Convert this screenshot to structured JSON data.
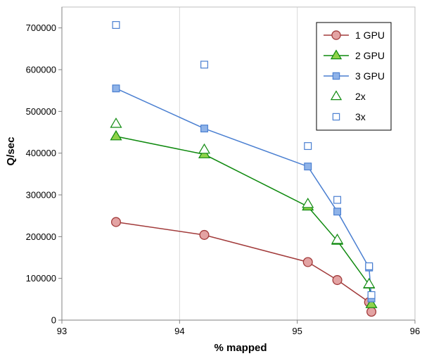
{
  "chart_data": {
    "type": "scatter",
    "xlabel": "% mapped",
    "ylabel": "Q/sec",
    "xlim": [
      93,
      96
    ],
    "ylim": [
      0,
      750000
    ],
    "xticks": [
      "93",
      "94",
      "95",
      "96"
    ],
    "yticks": [
      "0",
      "100000",
      "200000",
      "300000",
      "400000",
      "500000",
      "600000",
      "700000"
    ],
    "grid": "vertical",
    "legend_position": "top-right",
    "series": [
      {
        "name": "1 GPU",
        "marker": "circle",
        "filled": true,
        "line": true,
        "color": "#a23b3b",
        "fill": "#e3a3a3",
        "x": [
          93.46,
          94.21,
          95.09,
          95.34,
          95.61,
          95.63
        ],
        "y": [
          235000,
          204000,
          139000,
          96000,
          43000,
          20000
        ]
      },
      {
        "name": "2 GPU",
        "marker": "triangle",
        "filled": true,
        "line": true,
        "color": "#0f8a0f",
        "fill": "#8fd24a",
        "x": [
          93.46,
          94.21,
          95.09,
          95.34,
          95.61,
          95.63
        ],
        "y": [
          440000,
          397000,
          272000,
          190000,
          85000,
          38000
        ]
      },
      {
        "name": "3 GPU",
        "marker": "square",
        "filled": true,
        "line": true,
        "color": "#4a7fd1",
        "fill": "#8fb3e8",
        "x": [
          93.46,
          94.21,
          95.09,
          95.34,
          95.61,
          95.63
        ],
        "y": [
          555000,
          459000,
          368000,
          260000,
          126000,
          52000
        ]
      },
      {
        "name": "2x",
        "marker": "triangle",
        "filled": false,
        "line": false,
        "color": "#0f8a0f",
        "x": [
          93.46,
          94.21,
          95.09,
          95.34,
          95.61
        ],
        "y": [
          470000,
          408000,
          278000,
          192000,
          86000
        ]
      },
      {
        "name": "3x",
        "marker": "square",
        "filled": false,
        "line": false,
        "color": "#4a7fd1",
        "x": [
          93.46,
          94.21,
          95.09,
          95.34,
          95.61,
          95.63
        ],
        "y": [
          707000,
          612000,
          417000,
          288000,
          129000,
          60000
        ]
      }
    ]
  }
}
